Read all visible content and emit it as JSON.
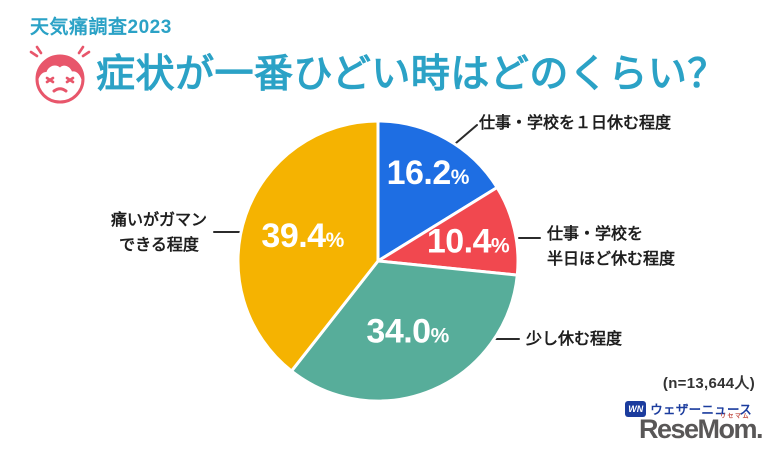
{
  "header": {
    "kicker": "天気痛調査2023",
    "title": "症状が一番ひどい時はどのくらい？"
  },
  "chart_data": {
    "type": "pie",
    "title": "症状が一番ひどい時はどのくらい？",
    "start_angle_deg": 0,
    "direction": "clockwise",
    "unit": "%",
    "sample_size_label": "(n=13,644人)",
    "slices": [
      {
        "label": "仕事・学校を１日休む程度",
        "value": 16.2,
        "display": "16.2%",
        "color": "#1E6EE3"
      },
      {
        "label": "仕事・学校を半日ほど休む程度",
        "value": 10.4,
        "display": "10.4%",
        "color": "#F1484F"
      },
      {
        "label": "少し休む程度",
        "value": 34.0,
        "display": "34.0%",
        "color": "#57AD9A"
      },
      {
        "label": "痛いがガマンできる程度",
        "value": 39.4,
        "display": "39.4%",
        "color": "#F5B301"
      }
    ]
  },
  "callouts": {
    "one_day": {
      "line1": "仕事・学校を１日休む程度"
    },
    "half_day": {
      "line1": "仕事・学校を",
      "line2": "半日ほど休む程度"
    },
    "short_rest": {
      "line1": "少し休む程度"
    },
    "bearable": {
      "line1": "痛いがガマン",
      "line2": "できる程度"
    }
  },
  "footer": {
    "sample_size": "(n=13,644人)",
    "weathernews": {
      "badge": "WN",
      "name": "ウェザーニュース"
    },
    "resemom": {
      "name": "ReseMom.",
      "ruby": "リセマム"
    }
  },
  "colors": {
    "title_teal": "#2BA2C6",
    "face_red": "#E8566B",
    "slice_blue": "#1E6EE3",
    "slice_red": "#F1484F",
    "slice_teal": "#57AD9A",
    "slice_yellow": "#F5B301",
    "wn_blue": "#1B3C9E",
    "resemom_gray": "#595757",
    "label_dark": "#1F1F1F"
  }
}
